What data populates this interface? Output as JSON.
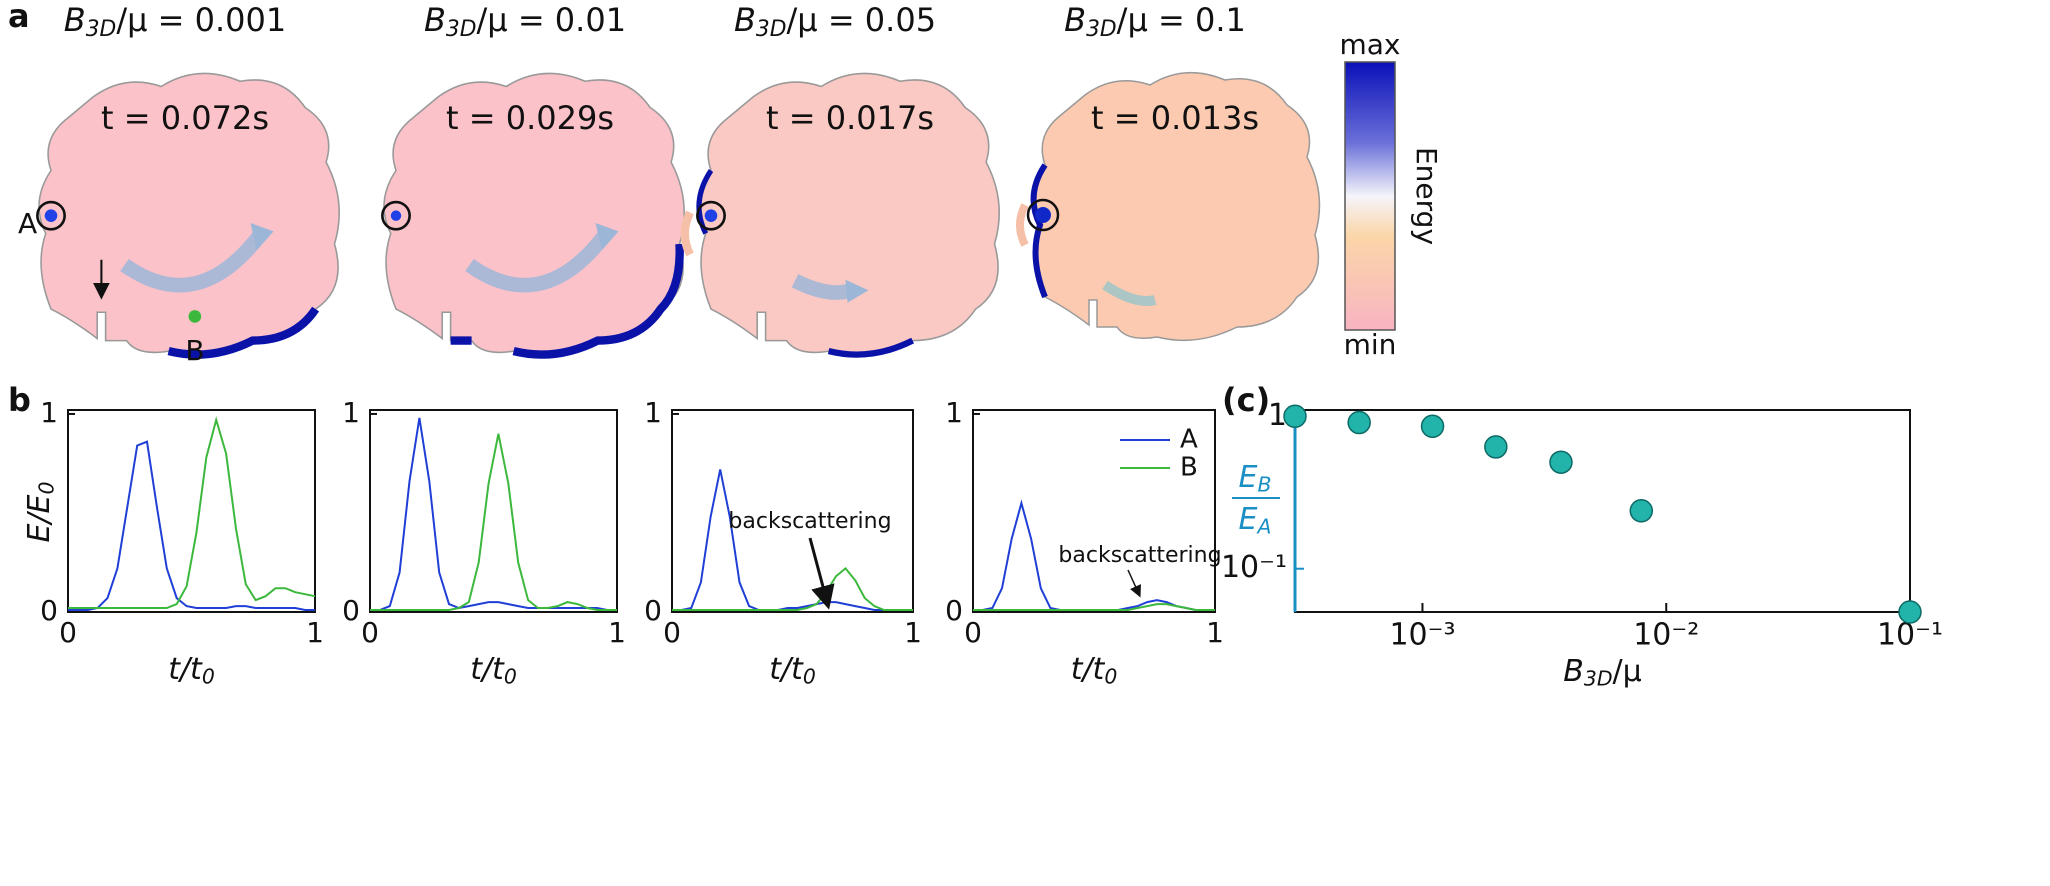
{
  "panel_labels": [
    "a",
    "b",
    "(c)"
  ],
  "top": {
    "panels": [
      {
        "title": {
          "base": "B",
          "sub": "3D",
          "tail": "/μ = 0.001"
        },
        "time": "t = 0.072s"
      },
      {
        "title": {
          "base": "B",
          "sub": "3D",
          "tail": "/μ = 0.01"
        },
        "time": "t = 0.029s"
      },
      {
        "title": {
          "base": "B",
          "sub": "3D",
          "tail": "/μ = 0.05"
        },
        "time": "t = 0.017s"
      },
      {
        "title": {
          "base": "B",
          "sub": "3D",
          "tail": "/μ = 0.1"
        },
        "time": "t = 0.013s"
      }
    ],
    "point_labels": [
      "A",
      "B"
    ],
    "colorbar": {
      "max": "max",
      "min": "min",
      "label": "Energy"
    }
  },
  "chart_data": [
    {
      "type": "line",
      "x": [
        0,
        0.04,
        0.08,
        0.12,
        0.16,
        0.2,
        0.24,
        0.28,
        0.32,
        0.36,
        0.4,
        0.44,
        0.48,
        0.52,
        0.56,
        0.6,
        0.64,
        0.68,
        0.72,
        0.76,
        0.8,
        0.84,
        0.88,
        0.92,
        0.96,
        1
      ],
      "series": [
        {
          "color": "#1f3fd6",
          "values": [
            0.01,
            0.01,
            0.01,
            0.02,
            0.07,
            0.22,
            0.53,
            0.84,
            0.86,
            0.53,
            0.22,
            0.07,
            0.03,
            0.02,
            0.02,
            0.02,
            0.02,
            0.03,
            0.03,
            0.02,
            0.02,
            0.02,
            0.02,
            0.02,
            0.01,
            0.01
          ]
        },
        {
          "color": "#3cb83c",
          "values": [
            0.02,
            0.02,
            0.02,
            0.02,
            0.02,
            0.02,
            0.02,
            0.02,
            0.02,
            0.02,
            0.02,
            0.04,
            0.13,
            0.4,
            0.78,
            0.97,
            0.8,
            0.42,
            0.14,
            0.06,
            0.08,
            0.12,
            0.12,
            0.1,
            0.09,
            0.08
          ]
        }
      ],
      "xlim": [
        0,
        1
      ],
      "ylim": [
        0,
        1.02
      ],
      "xticks": [
        0,
        1
      ],
      "yticks": [
        0,
        1
      ],
      "xlabel": {
        "base": "t/t",
        "sub": "0"
      },
      "ylabel": {
        "base": "E/E",
        "sub": "0"
      }
    },
    {
      "type": "line",
      "x": [
        0,
        0.04,
        0.08,
        0.12,
        0.16,
        0.2,
        0.24,
        0.28,
        0.32,
        0.36,
        0.4,
        0.44,
        0.48,
        0.52,
        0.56,
        0.6,
        0.64,
        0.68,
        0.72,
        0.76,
        0.8,
        0.84,
        0.88,
        0.92,
        0.96,
        1
      ],
      "series": [
        {
          "color": "#1f3fd6",
          "values": [
            0.01,
            0.01,
            0.03,
            0.2,
            0.66,
            0.98,
            0.66,
            0.2,
            0.04,
            0.02,
            0.03,
            0.04,
            0.05,
            0.05,
            0.04,
            0.03,
            0.02,
            0.02,
            0.02,
            0.02,
            0.02,
            0.02,
            0.02,
            0.02,
            0.01,
            0.01
          ]
        },
        {
          "color": "#3cb83c",
          "values": [
            0.01,
            0.01,
            0.01,
            0.01,
            0.01,
            0.01,
            0.01,
            0.01,
            0.01,
            0.02,
            0.05,
            0.25,
            0.65,
            0.9,
            0.65,
            0.25,
            0.06,
            0.02,
            0.02,
            0.03,
            0.05,
            0.04,
            0.02,
            0.01,
            0.01,
            0.01
          ]
        }
      ],
      "xlim": [
        0,
        1
      ],
      "ylim": [
        0,
        1.02
      ],
      "xticks": [
        0,
        1
      ],
      "yticks": [
        0,
        1
      ],
      "xlabel": {
        "base": "t/t",
        "sub": "0"
      }
    },
    {
      "type": "line",
      "x": [
        0,
        0.04,
        0.08,
        0.12,
        0.16,
        0.2,
        0.24,
        0.28,
        0.32,
        0.36,
        0.4,
        0.44,
        0.48,
        0.52,
        0.56,
        0.6,
        0.64,
        0.68,
        0.72,
        0.76,
        0.8,
        0.84,
        0.88,
        0.92,
        0.96,
        1
      ],
      "series": [
        {
          "color": "#1f3fd6",
          "values": [
            0.01,
            0.01,
            0.02,
            0.15,
            0.48,
            0.72,
            0.48,
            0.15,
            0.03,
            0.01,
            0.01,
            0.01,
            0.02,
            0.02,
            0.03,
            0.04,
            0.05,
            0.05,
            0.04,
            0.03,
            0.02,
            0.01,
            0.01,
            0.01,
            0.01,
            0.01
          ]
        },
        {
          "color": "#3cb83c",
          "values": [
            0.01,
            0.01,
            0.01,
            0.01,
            0.01,
            0.01,
            0.01,
            0.01,
            0.01,
            0.01,
            0.01,
            0.01,
            0.01,
            0.01,
            0.02,
            0.04,
            0.1,
            0.18,
            0.22,
            0.16,
            0.07,
            0.03,
            0.01,
            0.01,
            0.01,
            0.01
          ]
        }
      ],
      "xlim": [
        0,
        1
      ],
      "ylim": [
        0,
        1.02
      ],
      "xticks": [
        0,
        1
      ],
      "yticks": [
        0,
        1
      ],
      "xlabel": {
        "base": "t/t",
        "sub": "0"
      },
      "annotation": "backscattering"
    },
    {
      "type": "line",
      "x": [
        0,
        0.04,
        0.08,
        0.12,
        0.16,
        0.2,
        0.24,
        0.28,
        0.32,
        0.36,
        0.4,
        0.44,
        0.48,
        0.52,
        0.56,
        0.6,
        0.64,
        0.68,
        0.72,
        0.76,
        0.8,
        0.84,
        0.88,
        0.92,
        0.96,
        1
      ],
      "series": [
        {
          "name": "A",
          "color": "#1f3fd6",
          "values": [
            0.01,
            0.01,
            0.02,
            0.12,
            0.37,
            0.55,
            0.37,
            0.12,
            0.02,
            0.01,
            0.01,
            0.01,
            0.01,
            0.01,
            0.01,
            0.01,
            0.02,
            0.03,
            0.05,
            0.06,
            0.05,
            0.03,
            0.02,
            0.01,
            0.01,
            0.01
          ]
        },
        {
          "name": "B",
          "color": "#3cb83c",
          "values": [
            0.01,
            0.01,
            0.01,
            0.01,
            0.01,
            0.01,
            0.01,
            0.01,
            0.01,
            0.01,
            0.01,
            0.01,
            0.01,
            0.01,
            0.01,
            0.01,
            0.01,
            0.02,
            0.03,
            0.04,
            0.04,
            0.03,
            0.02,
            0.01,
            0.01,
            0.01
          ]
        }
      ],
      "xlim": [
        0,
        1
      ],
      "ylim": [
        0,
        1.02
      ],
      "xticks": [
        0,
        1
      ],
      "yticks": [
        0,
        1
      ],
      "xlabel": {
        "base": "t/t",
        "sub": "0"
      },
      "annotation": "backscattering",
      "legend": "upper right"
    },
    {
      "type": "scatter",
      "x": [
        0.0003,
        0.00055,
        0.0011,
        0.002,
        0.0037,
        0.0079,
        0.1
      ],
      "values": [
        1,
        0.91,
        0.86,
        0.63,
        0.5,
        0.24,
        0.052
      ],
      "color": "#22b3aa",
      "axis_color": "#1a8fc4",
      "xlim": [
        0.0003,
        0.1
      ],
      "ylim": [
        0.052,
        1.1
      ],
      "xscale": "log",
      "yscale": "log",
      "xticks": [
        {
          "value": 0.001,
          "label": "10⁻³"
        },
        {
          "value": 0.01,
          "label": "10⁻²"
        },
        {
          "value": 0.1,
          "label": "10⁻¹"
        }
      ],
      "yticks": [
        1,
        {
          "value": 0.1,
          "label": "10⁻¹"
        }
      ],
      "xlabel": {
        "base": "B",
        "sub": "3D",
        "tail": "/μ"
      },
      "ylabel": {
        "num": {
          "base": "E",
          "sub": "B"
        },
        "den": {
          "base": "E",
          "sub": "A"
        }
      }
    }
  ]
}
